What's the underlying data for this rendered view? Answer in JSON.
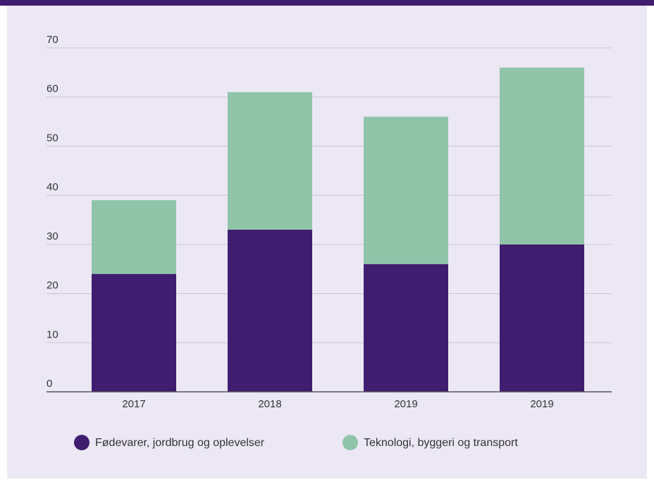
{
  "chart_data": {
    "type": "stacked_bar",
    "categories": [
      "2017",
      "2018",
      "2019",
      "2019"
    ],
    "series": [
      {
        "name": "Fødevarer, jordbrug og oplevelser",
        "color": "#3f1e6f",
        "values": [
          24,
          33,
          26,
          30
        ]
      },
      {
        "name": "Teknologi, byggeri og transport",
        "color": "#8fc4a8",
        "values": [
          15,
          28,
          30,
          36
        ]
      }
    ],
    "ylim": [
      0,
      70
    ],
    "yticks": [
      0,
      10,
      20,
      30,
      40,
      50,
      60,
      70
    ],
    "grid": true,
    "legend": "bottom"
  }
}
